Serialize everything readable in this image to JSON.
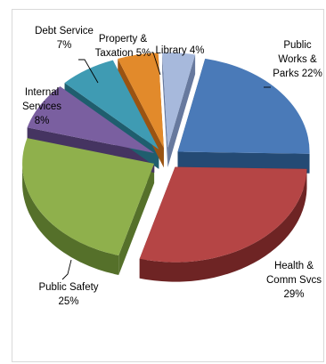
{
  "chart_data": {
    "type": "pie",
    "three_d": true,
    "exploded": true,
    "slices": [
      {
        "label": "Public Works & Parks",
        "value": 22,
        "label_text": [
          "Public",
          "Works &",
          "Parks 22%"
        ],
        "color": "#4a7ab8",
        "side": "#244a74"
      },
      {
        "label": "Health & Comm Svcs",
        "value": 29,
        "label_text": [
          "Health &",
          "Comm Svcs",
          "29%"
        ],
        "color": "#b54545",
        "side": "#6e2424"
      },
      {
        "label": "Public Safety",
        "value": 25,
        "label_text": [
          "Public Safety",
          "25%"
        ],
        "color": "#8fb04c",
        "side": "#55702a"
      },
      {
        "label": "Internal Services",
        "value": 8,
        "label_text": [
          "Internal",
          "Services",
          "8%"
        ],
        "color": "#7a5fa0",
        "side": "#453461"
      },
      {
        "label": "Debt Service",
        "value": 7,
        "label_text": [
          "Debt Service",
          "7%"
        ],
        "color": "#3f9bb3",
        "side": "#1f5e6e"
      },
      {
        "label": "Property & Taxation",
        "value": 5,
        "label_text": [
          "Property &",
          "Taxation 5%"
        ],
        "color": "#e28a2b",
        "side": "#9a5312"
      },
      {
        "label": "Library",
        "value": 4,
        "label_text": [
          "Library 4%"
        ],
        "color": "#a7b9dc",
        "side": "#67799e"
      }
    ]
  }
}
